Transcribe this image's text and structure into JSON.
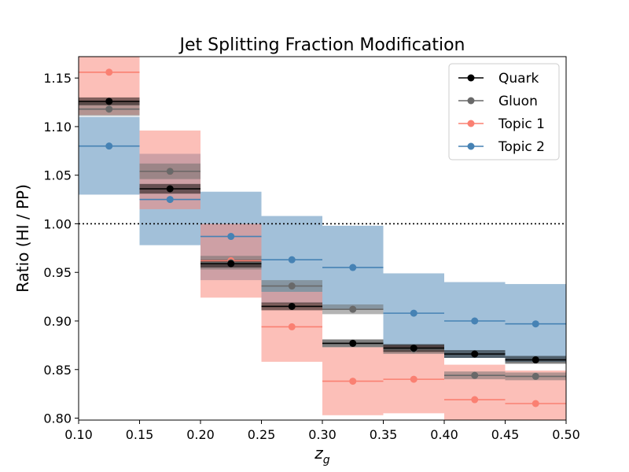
{
  "chart_data": {
    "type": "step-errorbar",
    "title": "Jet Splitting Fraction Modification",
    "xlabel": "z",
    "xlabel_sub": "g",
    "ylabel": "Ratio (HI / PP)",
    "xlim": [
      0.1,
      0.5
    ],
    "ylim": [
      0.798,
      1.172
    ],
    "xticks": [
      "0.10",
      "0.15",
      "0.20",
      "0.25",
      "0.30",
      "0.35",
      "0.40",
      "0.45",
      "0.50"
    ],
    "yticks": [
      "0.80",
      "0.85",
      "0.90",
      "0.95",
      "1.00",
      "1.05",
      "1.10",
      "1.15"
    ],
    "reference_line": 1.0,
    "legend_position": "top-right",
    "bins": [
      [
        0.1,
        0.15
      ],
      [
        0.15,
        0.2
      ],
      [
        0.2,
        0.25
      ],
      [
        0.25,
        0.3
      ],
      [
        0.3,
        0.35
      ],
      [
        0.35,
        0.4
      ],
      [
        0.4,
        0.45
      ],
      [
        0.45,
        0.5
      ]
    ],
    "series": [
      {
        "name": "Topic 2",
        "color": "#4682b4",
        "values": [
          1.08,
          1.025,
          0.987,
          0.963,
          0.955,
          0.908,
          0.9,
          0.897
        ],
        "band_low": [
          1.03,
          0.978,
          0.942,
          0.918,
          0.912,
          0.87,
          0.862,
          0.858
        ],
        "band_high": [
          1.11,
          1.072,
          1.033,
          1.008,
          0.998,
          0.949,
          0.94,
          0.938
        ]
      },
      {
        "name": "Topic 1",
        "color": "#fa8072",
        "values": [
          1.156,
          1.054,
          0.962,
          0.894,
          0.838,
          0.84,
          0.819,
          0.815
        ],
        "band_low": [
          1.112,
          1.015,
          0.924,
          0.858,
          0.803,
          0.805,
          0.795,
          0.795
        ],
        "band_high": [
          1.172,
          1.096,
          1.0,
          0.93,
          0.873,
          0.875,
          0.855,
          0.849
        ]
      },
      {
        "name": "Gluon",
        "color": "#696969",
        "values": [
          1.118,
          1.054,
          0.96,
          0.936,
          0.912,
          0.871,
          0.844,
          0.843
        ],
        "band_low": [
          1.111,
          1.046,
          0.953,
          0.93,
          0.907,
          0.866,
          0.84,
          0.839
        ],
        "band_high": [
          1.125,
          1.062,
          0.967,
          0.942,
          0.917,
          0.876,
          0.848,
          0.847
        ]
      },
      {
        "name": "Quark",
        "color": "#000000",
        "values": [
          1.126,
          1.036,
          0.959,
          0.915,
          0.877,
          0.872,
          0.866,
          0.86
        ],
        "band_low": [
          1.122,
          1.031,
          0.955,
          0.911,
          0.873,
          0.868,
          0.862,
          0.856
        ],
        "band_high": [
          1.13,
          1.041,
          0.963,
          0.919,
          0.881,
          0.876,
          0.87,
          0.864
        ]
      }
    ],
    "legend_order": [
      "Quark",
      "Gluon",
      "Topic 1",
      "Topic 2"
    ]
  }
}
